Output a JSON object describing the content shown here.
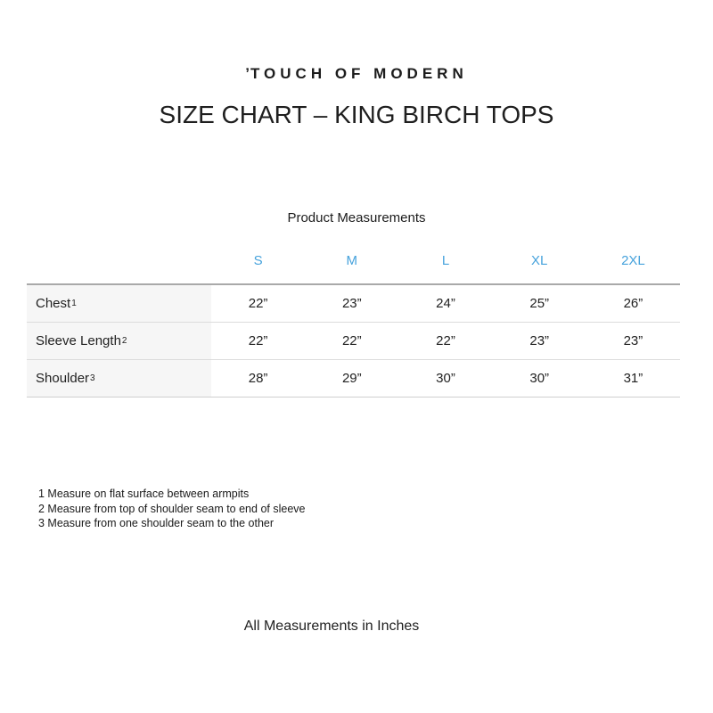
{
  "brand": {
    "mark": "ʼ",
    "name": "TOUCH OF MODERN"
  },
  "title": "SIZE CHART – KING BIRCH TOPS",
  "table": {
    "caption": "Product Measurements",
    "sizes": [
      "S",
      "M",
      "L",
      "XL",
      "2XL"
    ],
    "rows": [
      {
        "label": "Chest",
        "sup": "1",
        "values": [
          "22”",
          "23”",
          "24”",
          "25”",
          "26”"
        ]
      },
      {
        "label": "Sleeve Length",
        "sup": "2",
        "values": [
          "22”",
          "22”",
          "22”",
          "23”",
          "23”"
        ]
      },
      {
        "label": "Shoulder",
        "sup": "3",
        "values": [
          "28”",
          "29”",
          "30”",
          "30”",
          "31”"
        ]
      }
    ]
  },
  "footnotes": [
    "1 Measure on flat surface between armpits",
    "2 Measure from top of shoulder seam to end of sleeve",
    "3 Measure from one shoulder seam to the other"
  ],
  "footer": "All Measurements in Inches",
  "colors": {
    "accent": "#46a2dc",
    "label_bg": "#f6f6f6",
    "top_rule": "#a9a9a9"
  }
}
